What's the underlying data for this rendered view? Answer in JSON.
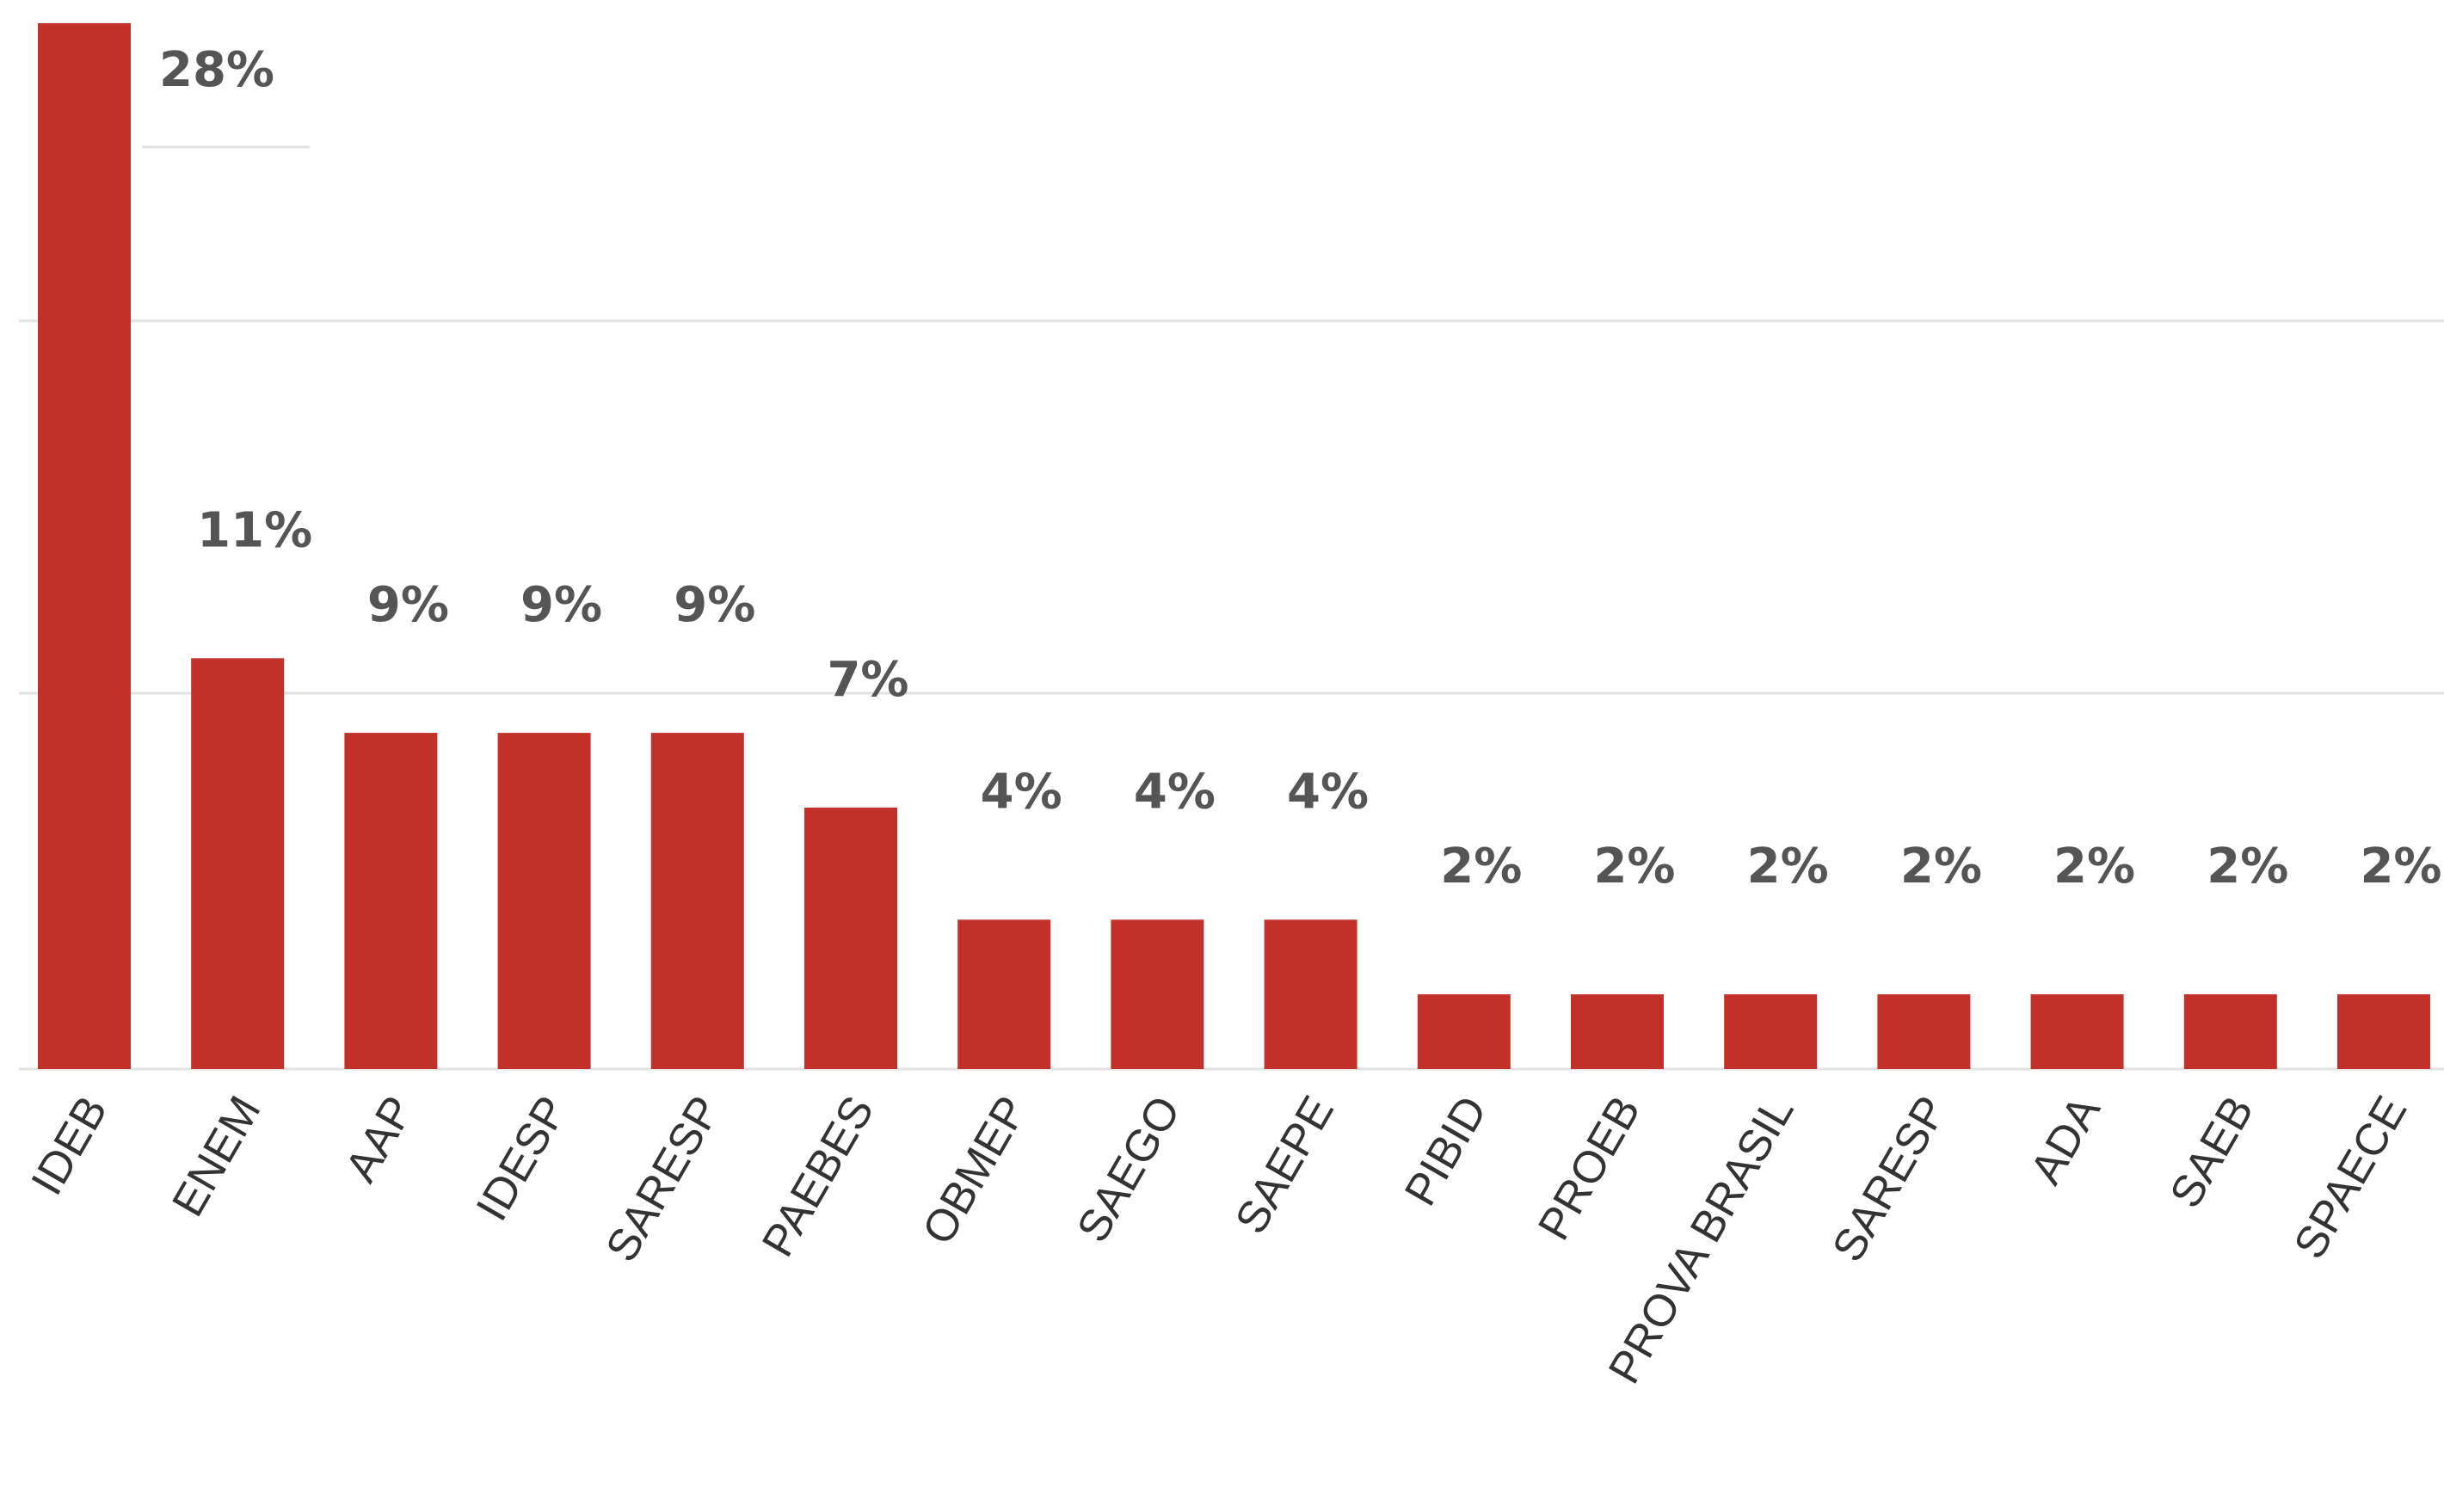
{
  "chart_data": {
    "type": "bar",
    "title": "",
    "xlabel": "",
    "ylabel": "",
    "categories": [
      "IDEB",
      "ENEM",
      "AAP",
      "IDESP",
      "SARESP",
      "PAEBES",
      "OBMEP",
      "SAEGO",
      "SAEPE",
      "PIBID",
      "PROEB",
      "PROVA BRASIL",
      "SARESP",
      "ADA",
      "SAEB",
      "SPAECE"
    ],
    "values": [
      28,
      11,
      9,
      9,
      9,
      7,
      4,
      4,
      4,
      2,
      2,
      2,
      2,
      2,
      2,
      2
    ],
    "value_labels": [
      "28%",
      "11%",
      "9%",
      "9%",
      "9%",
      "7%",
      "4%",
      "4%",
      "4%",
      "2%",
      "2%",
      "2%",
      "2%",
      "2%",
      "2%",
      "2%"
    ],
    "ylim": [
      0,
      28
    ],
    "grid": true,
    "legend": "none",
    "colors": {
      "bar": "#c1312a",
      "value_label": "#555555",
      "category_label": "#333333",
      "grid": "#e2e2e2"
    }
  }
}
